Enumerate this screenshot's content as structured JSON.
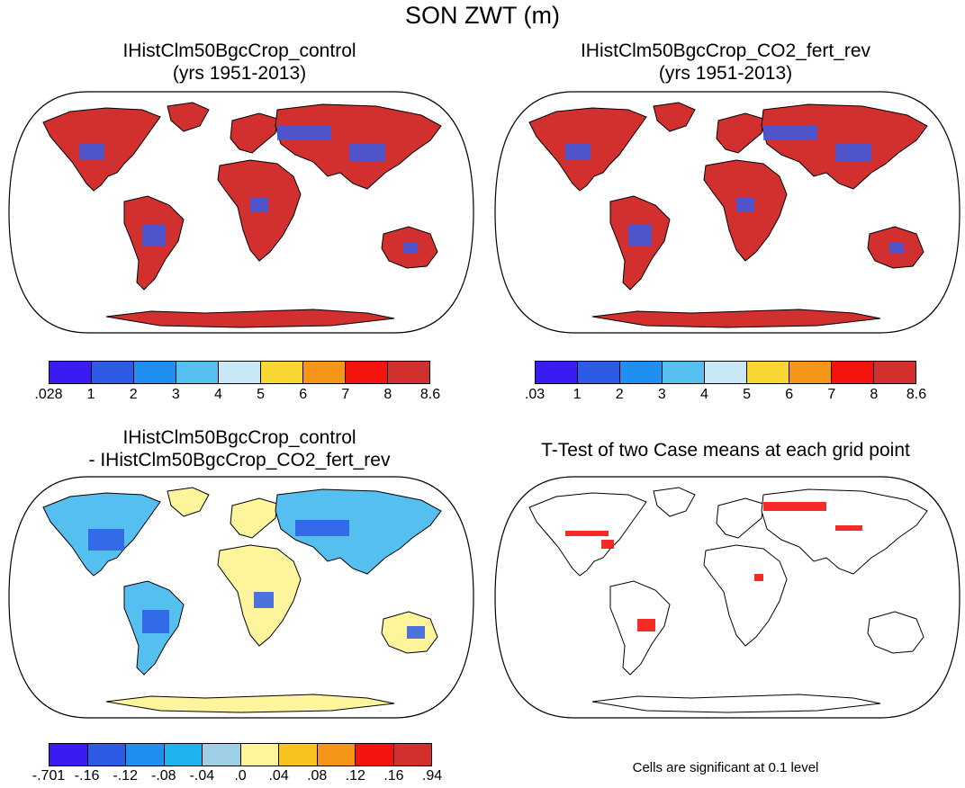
{
  "figure": {
    "title": "SON ZWT (m)"
  },
  "panels": {
    "top_left": {
      "line1": "IHistClm50BgcCrop_control",
      "line2": "(yrs 1951-2013)"
    },
    "top_right": {
      "line1": "IHistClm50BgcCrop_CO2_fert_rev",
      "line2": "(yrs 1951-2013)"
    },
    "bottom_left": {
      "line1": "IHistClm50BgcCrop_control",
      "line2": "- IHistClm50BgcCrop_CO2_fert_rev"
    },
    "bottom_right": {
      "line1": "T-Test of two Case means at each grid point"
    }
  },
  "colorbars": {
    "top_left": {
      "colors": [
        "#3a1cf2",
        "#2e5be6",
        "#1f8ff2",
        "#55bff0",
        "#c8e8f5",
        "#f8d633",
        "#f59619",
        "#f3140f",
        "#d22f2f"
      ],
      "labels": [
        ".028",
        "1",
        "2",
        "3",
        "4",
        "5",
        "6",
        "7",
        "8",
        "8.6"
      ]
    },
    "top_right": {
      "colors": [
        "#3a1cf2",
        "#2e5be6",
        "#1f8ff2",
        "#55bff0",
        "#c8e8f5",
        "#f8d633",
        "#f59619",
        "#f3140f",
        "#d22f2f"
      ],
      "labels": [
        ".03",
        "1",
        "2",
        "3",
        "4",
        "5",
        "6",
        "7",
        "8",
        "8.6"
      ]
    },
    "bottom_left": {
      "colors": [
        "#3a1cf2",
        "#2e5be6",
        "#1f8ff2",
        "#1fb4f0",
        "#9fcfe6",
        "#fdf49b",
        "#f8c21f",
        "#f59619",
        "#f3140f",
        "#d22f2f"
      ],
      "labels": [
        "-.701",
        "-.16",
        "-.12",
        "-.08",
        "-.04",
        ".0",
        ".04",
        ".08",
        ".12",
        ".16",
        ".94"
      ]
    }
  },
  "note": "Cells are significant at 0.1 level",
  "map_colors": {
    "land_high": "#d22f2f",
    "land_low": "#3a5be6",
    "diff_pos": "#fdf49b",
    "diff_neg": "#55bff0",
    "significant": "#f3140f"
  }
}
